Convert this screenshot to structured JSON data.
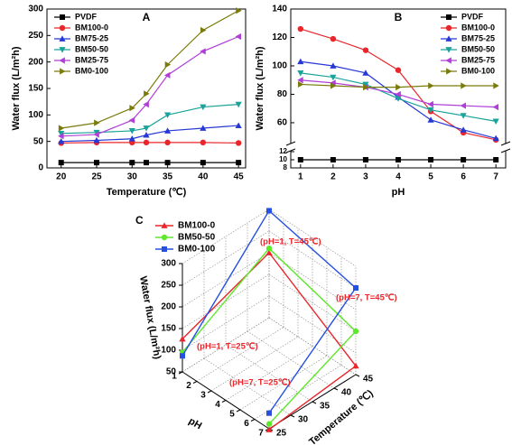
{
  "chart_data": [
    {
      "type": "line",
      "title": "A",
      "xlabel": "Temperature (℃)",
      "ylabel": "Water flux (L/m²h)",
      "x": [
        20,
        25,
        30,
        32,
        35,
        40,
        45
      ],
      "xlim": [
        18,
        46
      ],
      "xticks": [
        20,
        25,
        30,
        35,
        40,
        45
      ],
      "ylim": [
        0,
        300
      ],
      "yticks": [
        0,
        50,
        100,
        150,
        200,
        250,
        300
      ],
      "legend": "top-left",
      "series": [
        {
          "name": "PVDF",
          "color": "#000000",
          "marker": "square",
          "values": [
            10,
            10,
            10,
            10,
            10,
            10,
            10
          ]
        },
        {
          "name": "BM100-0",
          "color": "#e8262b",
          "marker": "circle",
          "values": [
            47,
            48,
            48,
            48,
            48,
            48,
            47
          ]
        },
        {
          "name": "BM75-25",
          "color": "#2639d4",
          "marker": "triangle-up",
          "values": [
            50,
            52,
            55,
            62,
            70,
            75,
            80
          ]
        },
        {
          "name": "BM50-50",
          "color": "#1aa39a",
          "marker": "triangle-down",
          "values": [
            65,
            67,
            70,
            75,
            100,
            115,
            120
          ]
        },
        {
          "name": "BM25-75",
          "color": "#b03fd6",
          "marker": "triangle-left",
          "values": [
            60,
            63,
            90,
            120,
            175,
            220,
            248
          ]
        },
        {
          "name": "BM0-100",
          "color": "#7b7b0b",
          "marker": "triangle-right",
          "values": [
            75,
            85,
            113,
            140,
            195,
            260,
            297
          ]
        }
      ]
    },
    {
      "type": "line",
      "title": "B",
      "xlabel": "pH",
      "ylabel": "Water flux (L/m²h)",
      "x": [
        1,
        2,
        3,
        4,
        5,
        6,
        7
      ],
      "xlim": [
        0.7,
        7.3
      ],
      "xticks": [
        1,
        2,
        3,
        4,
        5,
        6,
        7
      ],
      "ylim": [
        8,
        140
      ],
      "y_break": [
        12,
        46
      ],
      "yticks": [
        8,
        10,
        12,
        60,
        80,
        100,
        120,
        140
      ],
      "legend": "top-right",
      "series": [
        {
          "name": "PVDF",
          "color": "#000000",
          "marker": "square",
          "values": [
            10,
            10,
            10,
            10,
            10,
            10,
            10
          ]
        },
        {
          "name": "BM100-0",
          "color": "#e8262b",
          "marker": "circle",
          "values": [
            126,
            119,
            111,
            97,
            68,
            53,
            48
          ]
        },
        {
          "name": "BM75-25",
          "color": "#2639d4",
          "marker": "triangle-up",
          "values": [
            103,
            100,
            95,
            78,
            62,
            55,
            49
          ]
        },
        {
          "name": "BM50-50",
          "color": "#1aa39a",
          "marker": "triangle-down",
          "values": [
            95,
            92,
            87,
            77,
            69,
            65,
            61
          ]
        },
        {
          "name": "BM25-75",
          "color": "#b03fd6",
          "marker": "triangle-left",
          "values": [
            90,
            88,
            85,
            80,
            73,
            72,
            71
          ]
        },
        {
          "name": "BM0-100",
          "color": "#7b7b0b",
          "marker": "triangle-right",
          "values": [
            87,
            86,
            85,
            85,
            86,
            86,
            86
          ]
        }
      ]
    },
    {
      "type": "line3d",
      "title": "C",
      "xlabel": "pH",
      "ylabel": "Temperature (℃)",
      "zlabel": "Water flux (L/m²h)",
      "x": [
        1,
        1,
        7,
        7
      ],
      "y": [
        25,
        45,
        45,
        25
      ],
      "xlim": [
        1,
        7
      ],
      "xticks": [
        1,
        2,
        3,
        4,
        5,
        6,
        7
      ],
      "ylim": [
        25,
        45
      ],
      "yticks": [
        25,
        30,
        35,
        40,
        45
      ],
      "zlim": [
        50,
        300
      ],
      "zticks": [
        50,
        100,
        150,
        200,
        250,
        300
      ],
      "grid": true,
      "legend": "top-left",
      "annotations": [
        "(pH=1, T=45℃)",
        "(pH=7, T=45℃)",
        "(pH=1, T=25℃)",
        "(pH=7, T=25℃)"
      ],
      "series": [
        {
          "name": "BM100-0",
          "color": "#e8262b",
          "marker": "triangle-up",
          "values": [
            126,
            200,
            70,
            48
          ]
        },
        {
          "name": "BM50-50",
          "color": "#5ee82b",
          "marker": "circle",
          "values": [
            95,
            210,
            150,
            61
          ]
        },
        {
          "name": "BM0-100",
          "color": "#2650e0",
          "marker": "square",
          "values": [
            87,
            297,
            250,
            86
          ]
        }
      ]
    }
  ]
}
